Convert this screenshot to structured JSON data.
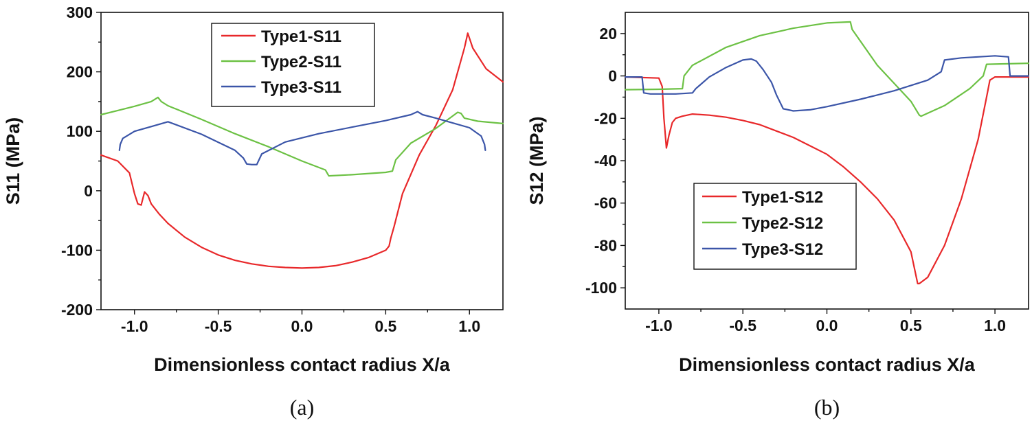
{
  "chart_data": [
    {
      "type": "line",
      "panel": "(a)",
      "title": "",
      "xlabel": "Dimensionless contact radius X/a",
      "ylabel": "S11 (MPa)",
      "xlim": [
        -1.2,
        1.2
      ],
      "ylim": [
        -200,
        300
      ],
      "xticks": [
        -1.0,
        -0.5,
        0.0,
        0.5,
        1.0
      ],
      "xtick_labels": [
        "-1.0",
        "-0.5",
        "0.0",
        "0.5",
        "1.0"
      ],
      "yticks": [
        -200,
        -100,
        0,
        100,
        200,
        300
      ],
      "ytick_labels": [
        "-200",
        "-100",
        "0",
        "100",
        "200",
        "300"
      ],
      "legend_position": "top-center",
      "series": [
        {
          "name": "Type1-S11",
          "color": "#e8282a",
          "x": [
            -1.2,
            -1.1,
            -1.03,
            -1.0,
            -0.98,
            -0.96,
            -0.94,
            -0.92,
            -0.9,
            -0.85,
            -0.8,
            -0.7,
            -0.6,
            -0.5,
            -0.4,
            -0.3,
            -0.2,
            -0.1,
            0.0,
            0.1,
            0.2,
            0.3,
            0.4,
            0.5,
            0.52,
            0.53,
            0.55,
            0.6,
            0.7,
            0.8,
            0.9,
            0.97,
            0.99,
            1.02,
            1.1,
            1.2
          ],
          "y": [
            60,
            50,
            30,
            -5,
            -22,
            -24,
            -2,
            -8,
            -22,
            -40,
            -55,
            -78,
            -95,
            -108,
            -117,
            -123,
            -127,
            -129,
            -130,
            -129,
            -126,
            -120,
            -112,
            -100,
            -93,
            -80,
            -60,
            -5,
            60,
            110,
            170,
            240,
            265,
            240,
            205,
            183
          ]
        },
        {
          "name": "Type2-S11",
          "color": "#6cc144",
          "x": [
            -1.2,
            -1.1,
            -1.0,
            -0.9,
            -0.86,
            -0.84,
            -0.8,
            -0.6,
            -0.4,
            -0.2,
            0.0,
            0.14,
            0.16,
            0.3,
            0.5,
            0.54,
            0.56,
            0.65,
            0.8,
            0.93,
            0.95,
            0.97,
            1.05,
            1.2
          ],
          "y": [
            128,
            135,
            142,
            150,
            157,
            150,
            143,
            120,
            96,
            74,
            50,
            35,
            25,
            27,
            31,
            33,
            52,
            80,
            105,
            132,
            130,
            122,
            117,
            113
          ]
        },
        {
          "name": "Type3-S11",
          "color": "#3b55a8",
          "x": [
            -1.09,
            -1.085,
            -1.07,
            -1.0,
            -0.9,
            -0.8,
            -0.6,
            -0.4,
            -0.35,
            -0.33,
            -0.3,
            -0.27,
            -0.24,
            -0.1,
            0.1,
            0.3,
            0.5,
            0.65,
            0.69,
            0.72,
            0.8,
            0.9,
            1.0,
            1.07,
            1.09,
            1.095
          ],
          "y": [
            68,
            78,
            88,
            100,
            108,
            116,
            95,
            68,
            55,
            45,
            44,
            44,
            62,
            82,
            96,
            107,
            118,
            128,
            133,
            128,
            122,
            114,
            106,
            92,
            78,
            68
          ]
        }
      ]
    },
    {
      "type": "line",
      "panel": "(b)",
      "title": "",
      "xlabel": "Dimensionless contact radius X/a",
      "ylabel": "S12 (MPa)",
      "xlim": [
        -1.2,
        1.2
      ],
      "ylim": [
        -110,
        30
      ],
      "xticks": [
        -1.0,
        -0.5,
        0.0,
        0.5,
        1.0
      ],
      "xtick_labels": [
        "-1.0",
        "-0.5",
        "0.0",
        "0.5",
        "1.0"
      ],
      "yticks": [
        -100,
        -80,
        -60,
        -40,
        -20,
        0,
        20
      ],
      "ytick_labels": [
        "-100",
        "-80",
        "-60",
        "-40",
        "-20",
        "0",
        "20"
      ],
      "legend_position": "bottom-center",
      "series": [
        {
          "name": "Type1-S12",
          "color": "#e8282a",
          "x": [
            -1.2,
            -1.0,
            -0.98,
            -0.97,
            -0.955,
            -0.94,
            -0.92,
            -0.9,
            -0.86,
            -0.8,
            -0.7,
            -0.6,
            -0.5,
            -0.4,
            -0.3,
            -0.2,
            -0.1,
            0.0,
            0.1,
            0.2,
            0.3,
            0.4,
            0.5,
            0.54,
            0.55,
            0.6,
            0.7,
            0.8,
            0.9,
            0.95,
            0.97,
            1.0,
            1.2
          ],
          "y": [
            -0.5,
            -1,
            -5,
            -20,
            -34,
            -28,
            -22,
            -20,
            -19,
            -18,
            -18.5,
            -19.5,
            -21,
            -23,
            -26,
            -29,
            -33,
            -37,
            -43,
            -50,
            -58,
            -68,
            -83,
            -98,
            -98,
            -95,
            -80,
            -58,
            -30,
            -10,
            -2,
            -0.5,
            -0.5
          ]
        },
        {
          "name": "Type2-S12",
          "color": "#6cc144",
          "x": [
            -1.2,
            -1.0,
            -0.86,
            -0.85,
            -0.8,
            -0.6,
            -0.4,
            -0.2,
            0.0,
            0.14,
            0.15,
            0.3,
            0.5,
            0.55,
            0.56,
            0.7,
            0.85,
            0.93,
            0.95,
            1.2
          ],
          "y": [
            -6.5,
            -6.3,
            -6,
            0,
            5,
            13.5,
            19,
            22.5,
            25,
            25.5,
            22,
            5,
            -12,
            -18.5,
            -19,
            -14,
            -6,
            0,
            5.5,
            6
          ]
        },
        {
          "name": "Type3-S12",
          "color": "#3b55a8",
          "x": [
            -1.2,
            -1.1,
            -1.09,
            -1.05,
            -0.9,
            -0.8,
            -0.78,
            -0.7,
            -0.6,
            -0.5,
            -0.45,
            -0.42,
            -0.38,
            -0.33,
            -0.3,
            -0.26,
            -0.2,
            -0.1,
            0.0,
            0.2,
            0.4,
            0.6,
            0.68,
            0.7,
            0.8,
            0.9,
            1.0,
            1.08,
            1.09,
            1.2
          ],
          "y": [
            -0.5,
            -0.5,
            -8,
            -8.5,
            -8.5,
            -8,
            -6,
            -0.5,
            4,
            7.5,
            8,
            7,
            3,
            -3,
            -9,
            -15.5,
            -16.5,
            -16,
            -14.5,
            -11,
            -7,
            -2,
            2,
            7.5,
            8.5,
            9,
            9.5,
            9,
            0,
            0
          ]
        }
      ]
    }
  ]
}
